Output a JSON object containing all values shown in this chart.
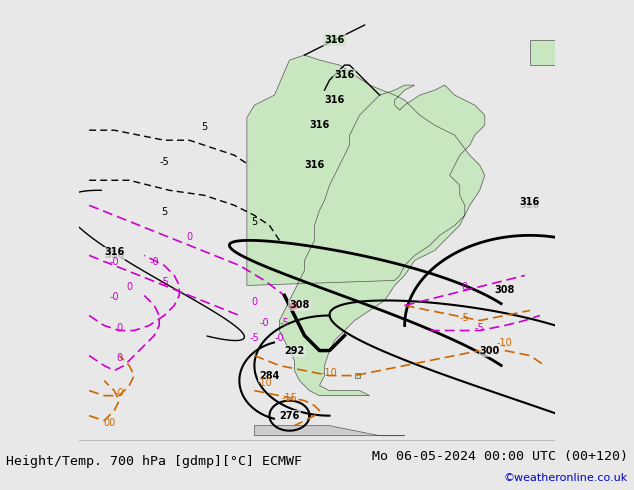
{
  "title_left": "Height/Temp. 700 hPa [gdmp][°C] ECMWF",
  "title_right": "Mo 06-05-2024 00:00 UTC (00+120)",
  "credit": "©weatheronline.co.uk",
  "background_color": "#e8e8e8",
  "land_color": "#c8e6c0",
  "ocean_color": "#e8e8e8",
  "border_color": "#555555",
  "title_fontsize": 9.5,
  "credit_fontsize": 8,
  "credit_color": "#0000cc"
}
